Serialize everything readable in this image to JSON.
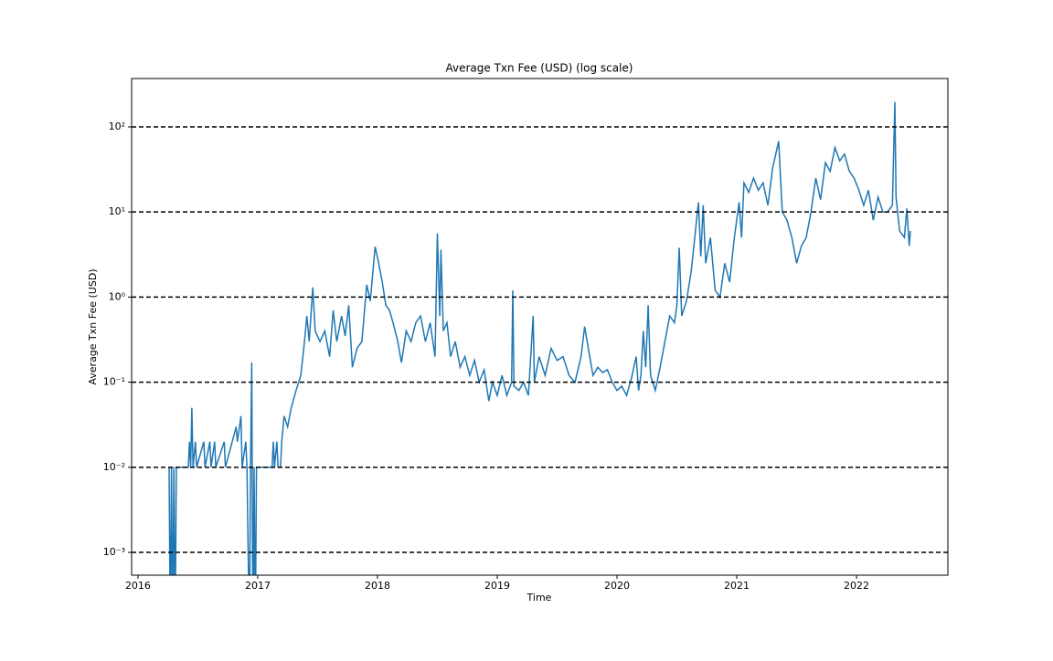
{
  "chart_data": {
    "type": "line",
    "title": "Average Txn Fee (USD) (log scale)",
    "x_label": "Time",
    "y_label": "Average Txn Fee (USD)",
    "log_y": true,
    "grid": true,
    "grid_style": "dashed",
    "grid_color": "#000000",
    "xlim": [
      2015.947,
      2022.763
    ],
    "xticks": [
      2016,
      2017,
      2018,
      2019,
      2020,
      2021,
      2022
    ],
    "ylim": [
      0.00054,
      370
    ],
    "yticks": [
      {
        "value": 0.001,
        "label": "10⁻³"
      },
      {
        "value": 0.01,
        "label": "10⁻²"
      },
      {
        "value": 0.1,
        "label": "10⁻¹"
      },
      {
        "value": 1,
        "label": "10⁰"
      },
      {
        "value": 10,
        "label": "10¹"
      },
      {
        "value": 100,
        "label": "10²"
      }
    ],
    "x": [
      2016.26,
      2016.27,
      2016.28,
      2016.29,
      2016.3,
      2016.31,
      2016.32,
      2016.42,
      2016.43,
      2016.44,
      2016.45,
      2016.46,
      2016.48,
      2016.49,
      2016.55,
      2016.56,
      2016.6,
      2016.61,
      2016.64,
      2016.65,
      2016.72,
      2016.73,
      2016.82,
      2016.83,
      2016.86,
      2016.87,
      2016.9,
      2016.91,
      2016.93,
      2016.94,
      2016.95,
      2016.96,
      2016.97,
      2016.98,
      2016.99,
      2017.12,
      2017.13,
      2017.14,
      2017.16,
      2017.17,
      2017.19,
      2017.2,
      2017.22,
      2017.25,
      2017.28,
      2017.32,
      2017.36,
      2017.39,
      2017.41,
      2017.43,
      2017.46,
      2017.48,
      2017.52,
      2017.56,
      2017.6,
      2017.63,
      2017.66,
      2017.7,
      2017.73,
      2017.76,
      2017.79,
      2017.83,
      2017.87,
      2017.91,
      2017.94,
      2017.98,
      2018.01,
      2018.04,
      2018.07,
      2018.1,
      2018.13,
      2018.17,
      2018.2,
      2018.24,
      2018.28,
      2018.32,
      2018.36,
      2018.4,
      2018.44,
      2018.48,
      2018.5,
      2018.52,
      2018.53,
      2018.55,
      2018.58,
      2018.61,
      2018.65,
      2018.69,
      2018.73,
      2018.77,
      2018.81,
      2018.85,
      2018.89,
      2018.93,
      2018.96,
      2019.0,
      2019.04,
      2019.08,
      2019.12,
      2019.13,
      2019.14,
      2019.18,
      2019.22,
      2019.26,
      2019.3,
      2019.31,
      2019.35,
      2019.4,
      2019.45,
      2019.5,
      2019.55,
      2019.6,
      2019.65,
      2019.7,
      2019.73,
      2019.76,
      2019.8,
      2019.84,
      2019.88,
      2019.92,
      2019.96,
      2020.0,
      2020.04,
      2020.08,
      2020.12,
      2020.16,
      2020.18,
      2020.2,
      2020.22,
      2020.24,
      2020.26,
      2020.28,
      2020.32,
      2020.36,
      2020.4,
      2020.44,
      2020.48,
      2020.5,
      2020.52,
      2020.54,
      2020.58,
      2020.62,
      2020.66,
      2020.68,
      2020.7,
      2020.72,
      2020.74,
      2020.78,
      2020.82,
      2020.86,
      2020.9,
      2020.94,
      2020.98,
      2021.02,
      2021.04,
      2021.06,
      2021.1,
      2021.14,
      2021.18,
      2021.22,
      2021.26,
      2021.3,
      2021.35,
      2021.38,
      2021.42,
      2021.46,
      2021.5,
      2021.54,
      2021.58,
      2021.62,
      2021.66,
      2021.7,
      2021.74,
      2021.78,
      2021.82,
      2021.86,
      2021.9,
      2021.94,
      2021.98,
      2022.02,
      2022.06,
      2022.1,
      2022.14,
      2022.18,
      2022.22,
      2022.26,
      2022.3,
      2022.32,
      2022.33,
      2022.36,
      2022.4,
      2022.42,
      2022.44,
      2022.45
    ],
    "series": [
      {
        "name": "Average Txn Fee (USD)",
        "color": "#1f77b4",
        "values": [
          0.01,
          0.0001,
          0.01,
          0.0001,
          0.01,
          0.0001,
          0.01,
          0.01,
          0.02,
          0.01,
          0.05,
          0.01,
          0.02,
          0.01,
          0.02,
          0.01,
          0.02,
          0.01,
          0.02,
          0.01,
          0.02,
          0.01,
          0.03,
          0.02,
          0.04,
          0.01,
          0.02,
          0.01,
          0.0001,
          0.01,
          0.17,
          0.0001,
          0.01,
          0.0001,
          0.01,
          0.01,
          0.02,
          0.01,
          0.02,
          0.01,
          0.01,
          0.02,
          0.04,
          0.03,
          0.05,
          0.08,
          0.12,
          0.3,
          0.6,
          0.3,
          1.3,
          0.4,
          0.3,
          0.4,
          0.2,
          0.7,
          0.3,
          0.6,
          0.35,
          0.8,
          0.15,
          0.25,
          0.3,
          1.4,
          0.9,
          3.9,
          2.5,
          1.5,
          0.8,
          0.7,
          0.5,
          0.3,
          0.17,
          0.4,
          0.3,
          0.5,
          0.6,
          0.3,
          0.5,
          0.2,
          5.6,
          0.6,
          3.6,
          0.4,
          0.5,
          0.2,
          0.3,
          0.15,
          0.2,
          0.12,
          0.18,
          0.1,
          0.14,
          0.06,
          0.1,
          0.07,
          0.12,
          0.07,
          0.1,
          1.2,
          0.09,
          0.08,
          0.1,
          0.07,
          0.6,
          0.1,
          0.2,
          0.12,
          0.25,
          0.18,
          0.2,
          0.12,
          0.1,
          0.2,
          0.45,
          0.25,
          0.12,
          0.15,
          0.13,
          0.14,
          0.1,
          0.08,
          0.09,
          0.07,
          0.11,
          0.2,
          0.08,
          0.12,
          0.4,
          0.15,
          0.8,
          0.12,
          0.08,
          0.15,
          0.3,
          0.6,
          0.5,
          0.8,
          3.8,
          0.6,
          0.9,
          2,
          7,
          13,
          3,
          12,
          2.5,
          5,
          1.2,
          1,
          2.5,
          1.5,
          5,
          13,
          5,
          22,
          17,
          25,
          18,
          22,
          12,
          33,
          68,
          10,
          8,
          5,
          2.5,
          4,
          5,
          10,
          25,
          14,
          38,
          30,
          57,
          40,
          48,
          30,
          25,
          18,
          12,
          18,
          8,
          15,
          10,
          10,
          12,
          196,
          15,
          6,
          5,
          11,
          4,
          6
        ]
      }
    ]
  }
}
